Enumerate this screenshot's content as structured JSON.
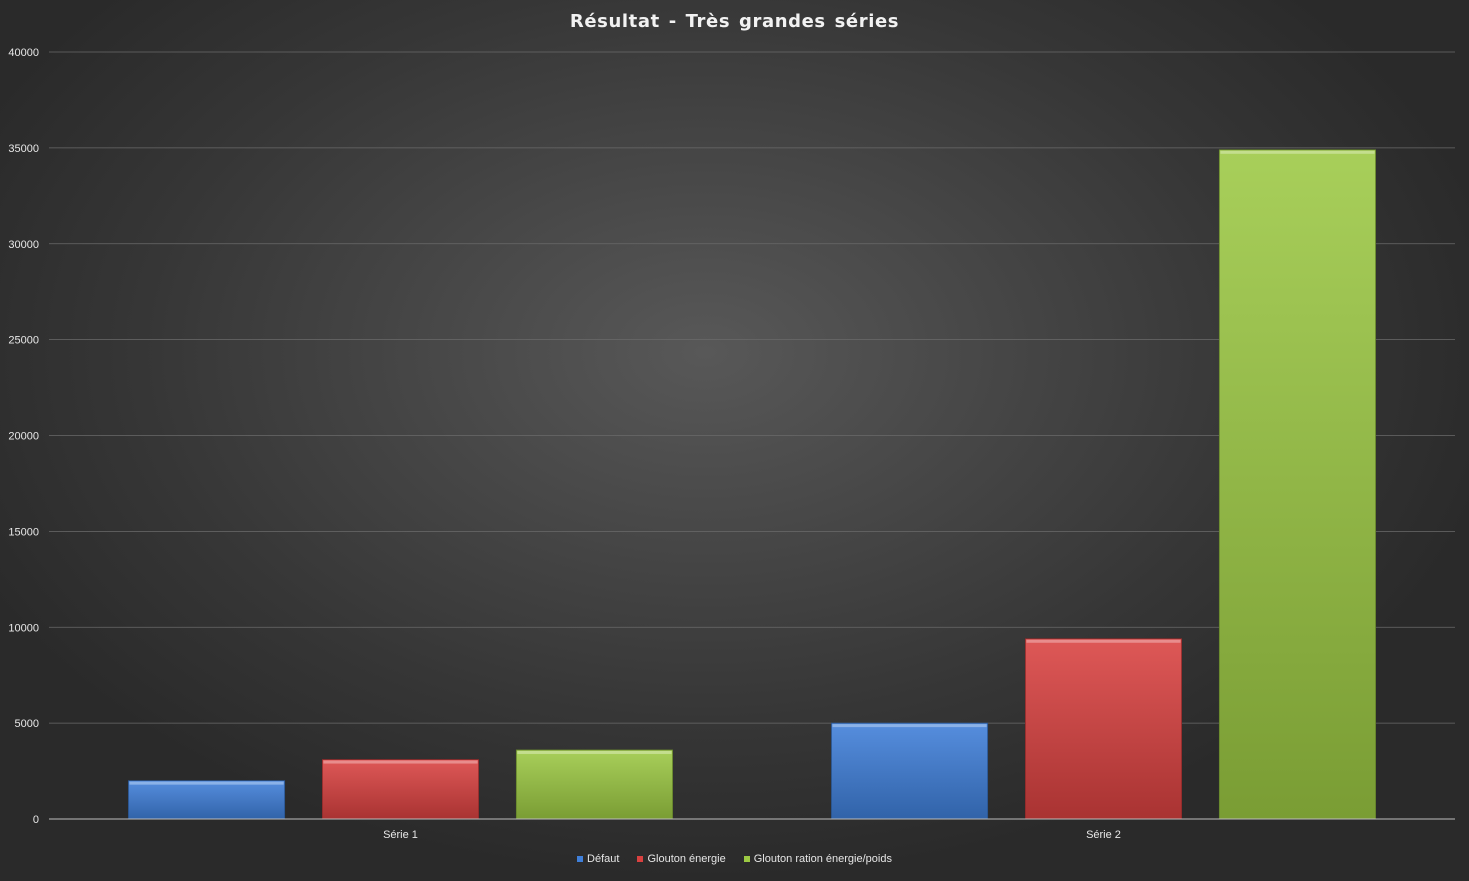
{
  "chart_data": {
    "type": "bar",
    "title": "Résultat - Très grandes séries",
    "xlabel": "",
    "ylabel": "",
    "categories": [
      "Série 1",
      "Série 2"
    ],
    "ylim": [
      0,
      40000
    ],
    "yticks": [
      0,
      5000,
      10000,
      15000,
      20000,
      25000,
      30000,
      35000,
      40000
    ],
    "grid": true,
    "legend_position": "bottom",
    "series": [
      {
        "name": "Défaut",
        "values": [
          2000,
          5000
        ],
        "color": "#3f7fd9"
      },
      {
        "name": "Glouton énergie",
        "values": [
          3100,
          9400
        ],
        "color": "#d94140"
      },
      {
        "name": "Glouton ration énergie/poids",
        "values": [
          3600,
          34900
        ],
        "color": "#9cc943"
      }
    ]
  }
}
